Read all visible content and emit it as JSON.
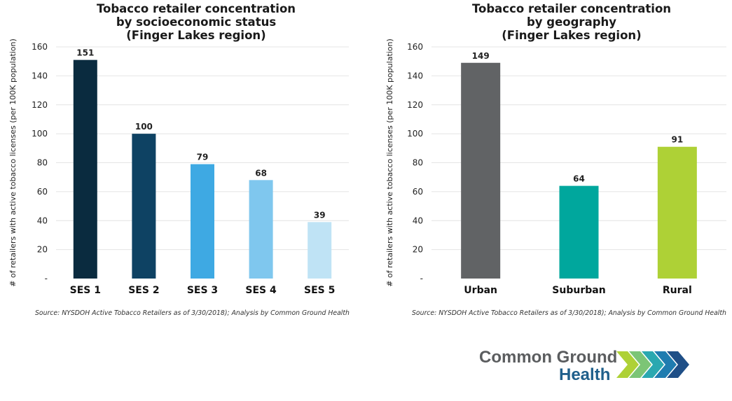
{
  "chart_data": [
    {
      "type": "bar",
      "title": [
        "Tobacco retailer concentration",
        "by socioeconomic status",
        "(Finger Lakes region)"
      ],
      "categories": [
        "SES 1",
        "SES 2",
        "SES 3",
        "SES 4",
        "SES 5"
      ],
      "values": [
        151,
        100,
        79,
        68,
        39
      ],
      "colors": [
        "#0a2b3f",
        "#0e4263",
        "#3ea9e3",
        "#7fc7ee",
        "#bfe3f5"
      ],
      "ylabel": "# of retailers with active tobacco licenses (per 100K population)",
      "ylim": [
        0,
        160
      ],
      "yticks": [
        "-",
        "20",
        "40",
        "60",
        "80",
        "100",
        "120",
        "140",
        "160"
      ],
      "grid": true,
      "source": "Source: NYSDOH Active Tobacco Retailers as of 3/30/2018); Analysis by Common Ground Health"
    },
    {
      "type": "bar",
      "title": [
        "Tobacco retailer concentration",
        "by geography",
        "(Finger Lakes region)"
      ],
      "categories": [
        "Urban",
        "Suburban",
        "Rural"
      ],
      "values": [
        149,
        64,
        91
      ],
      "colors": [
        "#616365",
        "#00a79d",
        "#aed136"
      ],
      "ylabel": "# of retailers with active tobacco licenses (per 100K population)",
      "ylim": [
        0,
        160
      ],
      "yticks": [
        "-",
        "20",
        "40",
        "60",
        "80",
        "100",
        "120",
        "140",
        "160"
      ],
      "grid": true,
      "source": "Source: NYSDOH Active Tobacco Retailers as of 3/30/2018); Analysis by Common Ground Health"
    }
  ],
  "logo": {
    "line1": "Common Ground",
    "line2": "Health",
    "colors": {
      "text_dark": "#5b5d5f",
      "text_blue": "#1f5f8b"
    }
  }
}
